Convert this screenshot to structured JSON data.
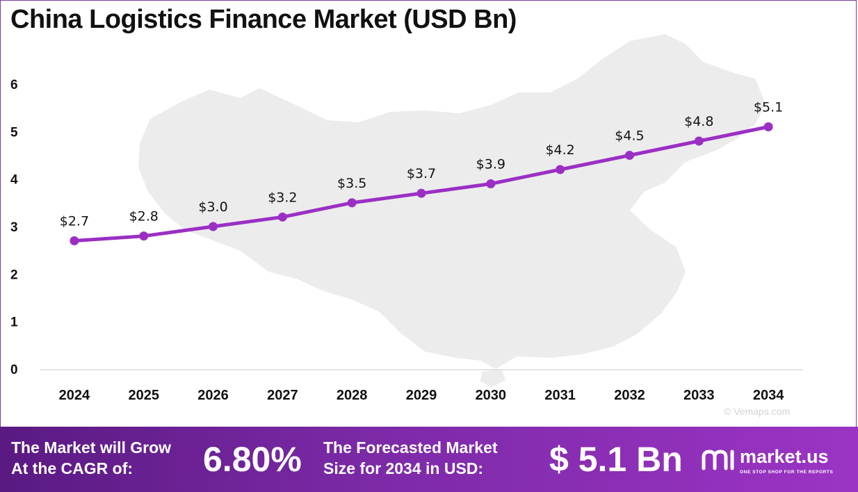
{
  "title": "China Logistics Finance Market (USD Bn)",
  "chart_data": {
    "type": "line",
    "title": "China Logistics Finance Market (USD Bn)",
    "categories": [
      "2024",
      "2025",
      "2026",
      "2027",
      "2028",
      "2029",
      "2030",
      "2031",
      "2032",
      "2033",
      "2034"
    ],
    "values": [
      2.7,
      2.8,
      3.0,
      3.2,
      3.5,
      3.7,
      3.9,
      4.2,
      4.5,
      4.8,
      5.1
    ],
    "data_labels": [
      "$2.7",
      "$2.8",
      "$3.0",
      "$3.2",
      "$3.5",
      "$3.7",
      "$3.9",
      "$4.2",
      "$4.5",
      "$4.8",
      "$5.1"
    ],
    "y_ticks": [
      "0",
      "1",
      "2",
      "3",
      "4",
      "5",
      "6"
    ],
    "ylim": [
      0,
      6
    ],
    "xlabel": "",
    "ylabel": "",
    "grid": false,
    "legend": "none",
    "line_color": "#9b2fc4",
    "background_image": "china-map-silhouette",
    "credit": "© Vemaps.com"
  },
  "footer": {
    "cagr_label_line1": "The Market will Grow",
    "cagr_label_line2": "At the CAGR of:",
    "cagr_value": "6.80%",
    "forecast_label_line1": "The Forecasted Market",
    "forecast_label_line2": "Size for 2034 in USD:",
    "forecast_value": "$ 5.1 Bn",
    "brand_name": "market.us",
    "brand_tagline": "ONE STOP SHOP FOR THE REPORTS",
    "gradient_start": "#5a1a82",
    "gradient_end": "#9b34c4"
  }
}
